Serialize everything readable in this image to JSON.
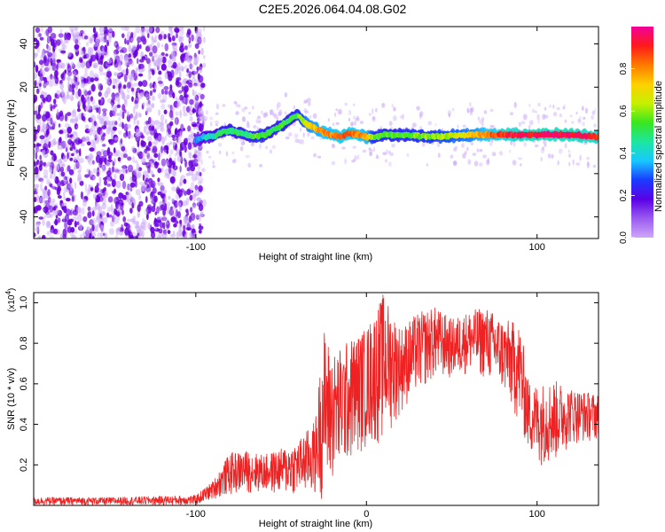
{
  "title": "C2E5.2026.064.04.08.G02",
  "colors": {
    "line": "#ee2222",
    "scatter_core": "#6a00e0",
    "scatter_light": "#c9a6f7",
    "colorbar_stops": [
      "#cfa6f9",
      "#9a5bf0",
      "#5a00e6",
      "#1a3cff",
      "#19c8ff",
      "#1ce6a0",
      "#39e61f",
      "#c6f000",
      "#ffd000",
      "#ff7a00",
      "#ff1a1a",
      "#f2009a"
    ]
  },
  "chart_data": [
    {
      "type": "heatmap",
      "title": "",
      "xlabel": "Height of straight line (km)",
      "ylabel": "Frequency (Hz)",
      "xlim": [
        -195,
        136
      ],
      "ylim": [
        -50,
        48
      ],
      "xticks": [
        -100,
        0,
        100
      ],
      "xtick_labels": [
        "-100",
        "",
        "100"
      ],
      "yticks": [
        -40,
        -20,
        0,
        20,
        40
      ],
      "ytick_labels": [
        "-40",
        "-20",
        "0",
        "20",
        "40"
      ],
      "colorbar": {
        "label": "Normalized spectral amplitude",
        "range": [
          0,
          1
        ],
        "ticks": [
          0.0,
          0.2,
          0.4,
          0.6,
          0.8
        ],
        "tick_labels": [
          "0.0",
          "0.2",
          "0.4",
          "0.6",
          "0.8"
        ]
      },
      "ridge": {
        "x": [
          -100,
          -95,
          -90,
          -85,
          -80,
          -75,
          -70,
          -65,
          -60,
          -55,
          -50,
          -45,
          -40,
          -35,
          -30,
          -25,
          -20,
          -15,
          -10,
          -5,
          0,
          5,
          10,
          20,
          40,
          60,
          80,
          100,
          120,
          136
        ],
        "freq": [
          -5,
          -3,
          -3,
          -1,
          0,
          -1,
          -2,
          -3,
          -2,
          0,
          2,
          5,
          7,
          3,
          1,
          -1,
          -2,
          -3,
          -1,
          -2,
          -3,
          -3,
          -2,
          -2,
          -3,
          -2,
          -2,
          -2,
          -2,
          -3
        ],
        "amplitude": [
          0.3,
          0.4,
          0.45,
          0.5,
          0.5,
          0.5,
          0.5,
          0.55,
          0.55,
          0.5,
          0.55,
          0.5,
          0.55,
          0.7,
          0.75,
          0.8,
          0.8,
          0.85,
          0.85,
          0.8,
          0.8,
          0.55,
          0.55,
          0.55,
          0.6,
          0.7,
          0.9,
          0.95,
          0.95,
          0.9
        ]
      },
      "scatter_region": {
        "x_from": -195,
        "x_to": -95,
        "amplitude": 0.05
      }
    },
    {
      "type": "line",
      "title": "",
      "xlabel": "Height of straight line (km)",
      "ylabel": "SNR (10 * v/v)",
      "exponent_label": "(x10",
      "exponent_power": "4",
      "exponent_close": ")",
      "xlim": [
        -195,
        136
      ],
      "ylim": [
        0,
        1.05
      ],
      "xticks": [
        -100,
        0,
        100
      ],
      "xtick_labels": [
        "-100",
        "0",
        "100"
      ],
      "yticks": [
        0.2,
        0.4,
        0.6,
        0.8,
        1.0
      ],
      "ytick_labels": [
        "0.2",
        "0.4",
        "0.6",
        "0.8",
        "1.0"
      ],
      "envelope": {
        "x": [
          -195,
          -150,
          -100,
          -90,
          -80,
          -70,
          -60,
          -50,
          -40,
          -30,
          -25,
          -20,
          -10,
          0,
          10,
          20,
          30,
          40,
          50,
          60,
          70,
          80,
          90,
          95,
          100,
          110,
          120,
          136
        ],
        "low": [
          0.0,
          0.0,
          0.0,
          0.03,
          0.05,
          0.06,
          0.06,
          0.05,
          0.05,
          0.04,
          0.03,
          0.1,
          0.2,
          0.28,
          0.3,
          0.45,
          0.55,
          0.62,
          0.62,
          0.65,
          0.62,
          0.55,
          0.38,
          0.25,
          0.2,
          0.2,
          0.3,
          0.32
        ],
        "high": [
          0.04,
          0.04,
          0.05,
          0.12,
          0.26,
          0.27,
          0.25,
          0.28,
          0.32,
          0.42,
          0.88,
          0.75,
          0.82,
          0.88,
          1.05,
          0.88,
          0.95,
          0.98,
          0.92,
          0.96,
          0.98,
          0.92,
          0.9,
          0.62,
          0.6,
          0.62,
          0.58,
          0.55
        ]
      }
    }
  ]
}
